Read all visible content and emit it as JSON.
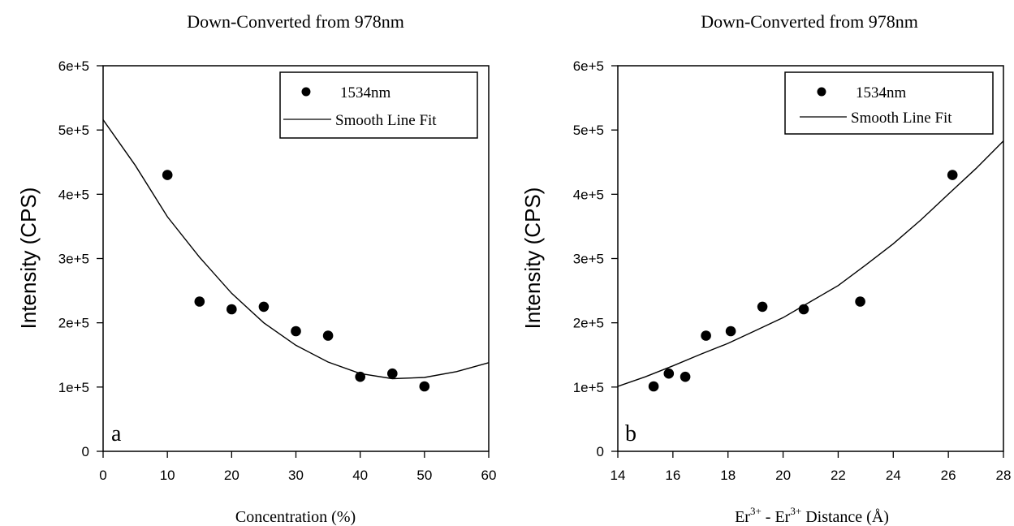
{
  "chart_data": [
    {
      "type": "scatter",
      "title": "Down-Converted from 978nm",
      "xlabel": "Concentration (%)",
      "ylabel": "Intensity (CPS)",
      "panel_label": "a",
      "xlim": [
        0,
        60
      ],
      "ylim": [
        0,
        600000
      ],
      "xticks": [
        0,
        10,
        20,
        30,
        40,
        50,
        60
      ],
      "yticks": [
        0,
        100000,
        200000,
        300000,
        400000,
        500000,
        600000
      ],
      "ytick_labels": [
        "0",
        "1e+5",
        "2e+5",
        "3e+5",
        "4e+5",
        "5e+5",
        "6e+5"
      ],
      "grid": false,
      "legend_position": "top-right",
      "series": [
        {
          "name": "1534nm",
          "kind": "points",
          "x": [
            10,
            15,
            20,
            25,
            30,
            35,
            40,
            45,
            50
          ],
          "y": [
            430000,
            233000,
            221000,
            225000,
            187000,
            180000,
            116000,
            121000,
            101000
          ]
        },
        {
          "name": "Smooth Line Fit",
          "kind": "line",
          "x": [
            0,
            5,
            10,
            15,
            20,
            25,
            30,
            35,
            40,
            45,
            50,
            55,
            60
          ],
          "y": [
            516000,
            445000,
            365000,
            302000,
            246000,
            200000,
            165000,
            139000,
            121000,
            113000,
            115000,
            124000,
            138000
          ]
        }
      ]
    },
    {
      "type": "scatter",
      "title": "Down-Converted from 978nm",
      "xlabel_parts": {
        "a": "Er",
        "sup1": "3+",
        "b": " - Er",
        "sup2": "3+",
        "c": " Distance  (Å)"
      },
      "ylabel": "Intensity (CPS)",
      "panel_label": "b",
      "xlim": [
        14,
        28
      ],
      "ylim": [
        0,
        600000
      ],
      "xticks": [
        14,
        16,
        18,
        20,
        22,
        24,
        26,
        28
      ],
      "yticks": [
        0,
        100000,
        200000,
        300000,
        400000,
        500000,
        600000
      ],
      "ytick_labels": [
        "0",
        "1e+5",
        "2e+5",
        "3e+5",
        "4e+5",
        "5e+5",
        "6e+5"
      ],
      "grid": false,
      "legend_position": "top-right",
      "series": [
        {
          "name": "1534nm",
          "kind": "points",
          "x": [
            15.3,
            15.85,
            16.45,
            17.2,
            18.1,
            19.25,
            20.75,
            22.8,
            26.15
          ],
          "y": [
            101000,
            121000,
            116000,
            180000,
            187000,
            225000,
            221000,
            233000,
            430000
          ]
        },
        {
          "name": "Smooth Line Fit",
          "kind": "line",
          "x": [
            14,
            15,
            16,
            17,
            18,
            19,
            20,
            21,
            22,
            23,
            24,
            25,
            26,
            27,
            28
          ],
          "y": [
            101000,
            116000,
            133000,
            151000,
            168000,
            188000,
            208000,
            233000,
            258000,
            290000,
            323000,
            360000,
            400000,
            440000,
            483000
          ]
        }
      ]
    }
  ]
}
